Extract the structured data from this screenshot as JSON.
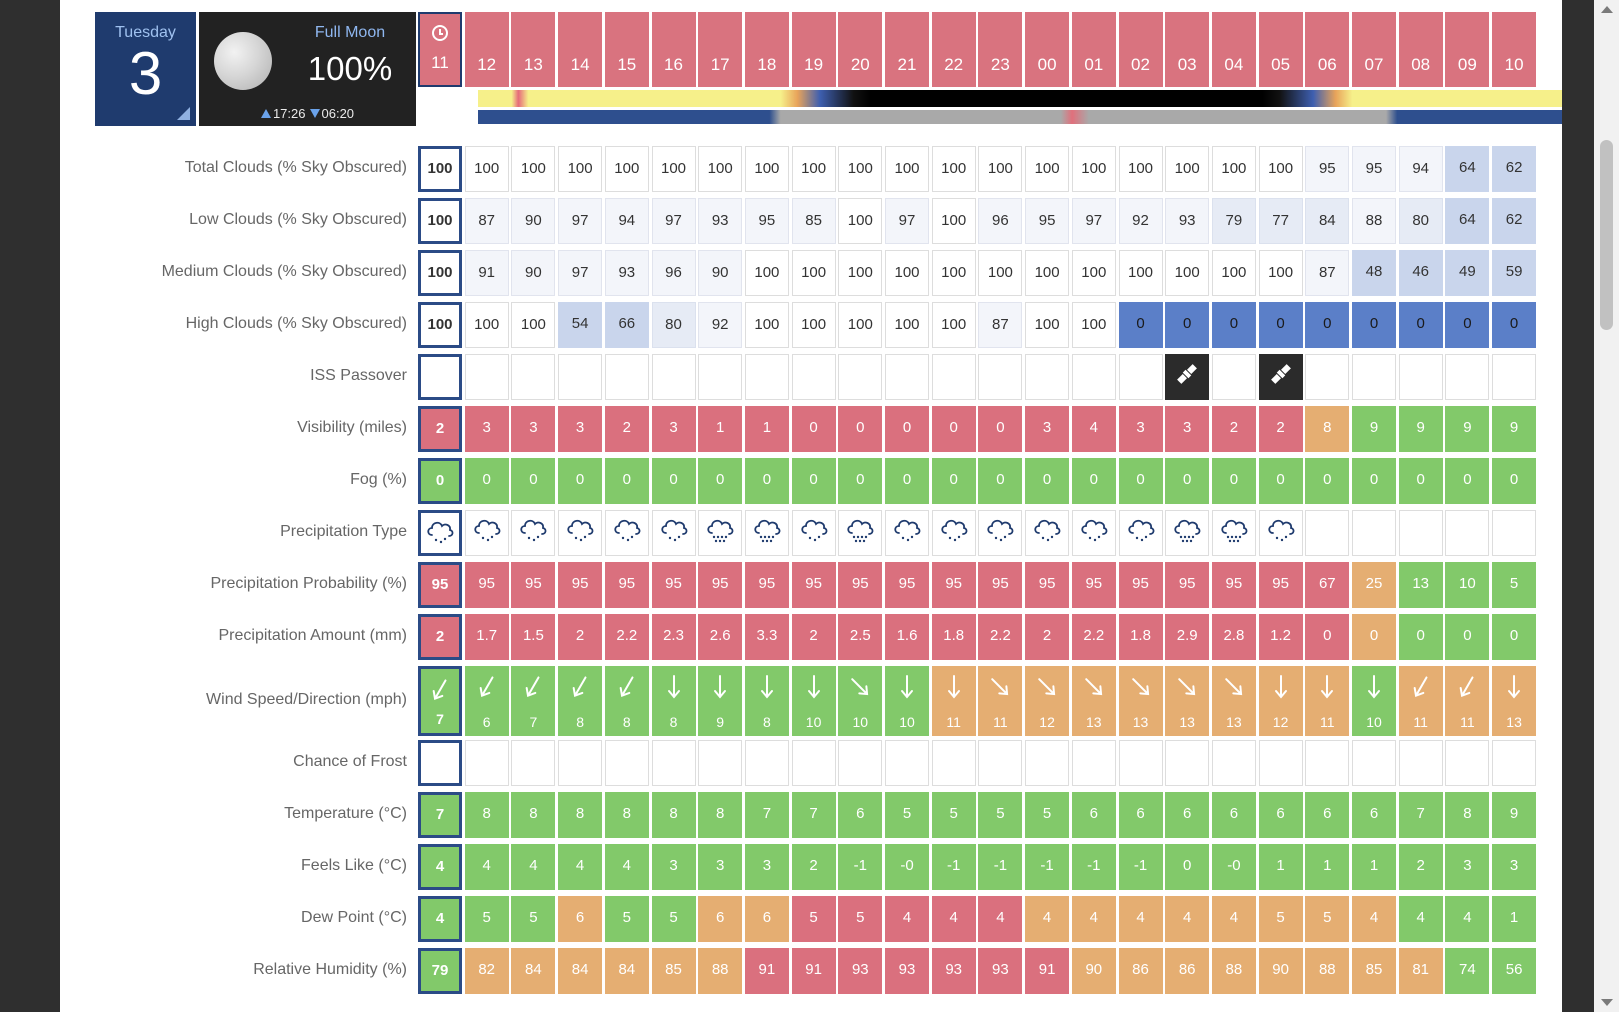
{
  "day": {
    "name": "Tuesday",
    "number": "3"
  },
  "moon": {
    "phase": "Full Moon",
    "percent": "100%",
    "rise": "17:26",
    "set": "06:20"
  },
  "hours": [
    "11",
    "12",
    "13",
    "14",
    "15",
    "16",
    "17",
    "18",
    "19",
    "20",
    "21",
    "22",
    "23",
    "00",
    "01",
    "02",
    "03",
    "04",
    "05",
    "06",
    "07",
    "08",
    "09",
    "10"
  ],
  "rows": [
    {
      "label": "Total Clouds (% Sky Obscured)",
      "kind": "cloud",
      "values": [
        "100",
        "100",
        "100",
        "100",
        "100",
        "100",
        "100",
        "100",
        "100",
        "100",
        "100",
        "100",
        "100",
        "100",
        "100",
        "100",
        "100",
        "100",
        "100",
        "95",
        "95",
        "94",
        "64",
        "62"
      ]
    },
    {
      "label": "Low Clouds (% Sky Obscured)",
      "kind": "cloud",
      "values": [
        "100",
        "87",
        "90",
        "97",
        "94",
        "97",
        "93",
        "95",
        "85",
        "100",
        "97",
        "100",
        "96",
        "95",
        "97",
        "92",
        "93",
        "79",
        "77",
        "84",
        "88",
        "80",
        "64",
        "62"
      ]
    },
    {
      "label": "Medium Clouds (% Sky Obscured)",
      "kind": "cloud",
      "values": [
        "100",
        "91",
        "90",
        "97",
        "93",
        "96",
        "90",
        "100",
        "100",
        "100",
        "100",
        "100",
        "100",
        "100",
        "100",
        "100",
        "100",
        "100",
        "100",
        "87",
        "48",
        "46",
        "49",
        "59"
      ]
    },
    {
      "label": "High Clouds (% Sky Obscured)",
      "kind": "cloud",
      "values": [
        "100",
        "100",
        "100",
        "54",
        "66",
        "80",
        "92",
        "100",
        "100",
        "100",
        "100",
        "100",
        "87",
        "100",
        "100",
        "0",
        "0",
        "0",
        "0",
        "0",
        "0",
        "0",
        "0",
        "0"
      ]
    },
    {
      "label": "ISS Passover",
      "kind": "iss",
      "values": [
        "",
        "",
        "",
        "",
        "",
        "",
        "",
        "",
        "",
        "",
        "",
        "",
        "",
        "",
        "",
        "",
        "sat",
        "",
        "sat",
        "",
        "",
        "",
        "",
        ""
      ]
    },
    {
      "label": "Visibility (miles)",
      "kind": "vis",
      "values": [
        "2",
        "3",
        "3",
        "3",
        "2",
        "3",
        "1",
        "1",
        "0",
        "0",
        "0",
        "0",
        "0",
        "3",
        "4",
        "3",
        "3",
        "2",
        "2",
        "8",
        "9",
        "9",
        "9",
        "9"
      ]
    },
    {
      "label": "Fog (%)",
      "kind": "fog",
      "values": [
        "0",
        "0",
        "0",
        "0",
        "0",
        "0",
        "0",
        "0",
        "0",
        "0",
        "0",
        "0",
        "0",
        "0",
        "0",
        "0",
        "0",
        "0",
        "0",
        "0",
        "0",
        "0",
        "0",
        "0"
      ]
    },
    {
      "label": "Precipitation Type",
      "kind": "ptype",
      "values": [
        "light",
        "light",
        "light",
        "light",
        "light",
        "light",
        "heavy",
        "heavy",
        "light",
        "heavy",
        "light",
        "light",
        "light",
        "light",
        "light",
        "light",
        "heavy",
        "heavy",
        "light",
        "",
        "",
        "",
        "",
        ""
      ]
    },
    {
      "label": "Precipitation Probability (%)",
      "kind": "pprob",
      "values": [
        "95",
        "95",
        "95",
        "95",
        "95",
        "95",
        "95",
        "95",
        "95",
        "95",
        "95",
        "95",
        "95",
        "95",
        "95",
        "95",
        "95",
        "95",
        "95",
        "67",
        "25",
        "13",
        "10",
        "5"
      ]
    },
    {
      "label": "Precipitation Amount (mm)",
      "kind": "pamt",
      "values": [
        "2",
        "1.7",
        "1.5",
        "2",
        "2.2",
        "2.3",
        "2.6",
        "3.3",
        "2",
        "2.5",
        "1.6",
        "1.8",
        "2.2",
        "2",
        "2.2",
        "1.8",
        "2.9",
        "2.8",
        "1.2",
        "0",
        "0",
        "0",
        "0",
        "0"
      ]
    },
    {
      "label": "Wind Speed/Direction (mph)",
      "kind": "wind",
      "values": [
        "7",
        "6",
        "7",
        "8",
        "8",
        "8",
        "9",
        "8",
        "10",
        "10",
        "10",
        "11",
        "11",
        "12",
        "13",
        "13",
        "13",
        "13",
        "12",
        "11",
        "10",
        "11",
        "11",
        "13"
      ],
      "dirs": [
        210,
        210,
        210,
        210,
        210,
        180,
        180,
        180,
        180,
        135,
        180,
        180,
        135,
        135,
        135,
        135,
        135,
        135,
        180,
        180,
        180,
        210,
        210,
        180
      ]
    },
    {
      "label": "Chance of Frost",
      "kind": "frost",
      "values": [
        "",
        "",
        "",
        "",
        "",
        "",
        "",
        "",
        "",
        "",
        "",
        "",
        "",
        "",
        "",
        "",
        "",
        "",
        "",
        "",
        "",
        "",
        "",
        ""
      ]
    },
    {
      "label": "Temperature (°C)",
      "kind": "temp",
      "values": [
        "7",
        "8",
        "8",
        "8",
        "8",
        "8",
        "8",
        "7",
        "7",
        "6",
        "5",
        "5",
        "5",
        "5",
        "6",
        "6",
        "6",
        "6",
        "6",
        "6",
        "6",
        "7",
        "8",
        "9"
      ]
    },
    {
      "label": "Feels Like (°C)",
      "kind": "feels",
      "values": [
        "4",
        "4",
        "4",
        "4",
        "4",
        "3",
        "3",
        "3",
        "2",
        "-1",
        "-0",
        "-1",
        "-1",
        "-1",
        "-1",
        "-1",
        "0",
        "-0",
        "1",
        "1",
        "1",
        "2",
        "3",
        "3"
      ]
    },
    {
      "label": "Dew Point (°C)",
      "kind": "dew",
      "values": [
        "4",
        "5",
        "5",
        "6",
        "5",
        "5",
        "6",
        "6",
        "5",
        "5",
        "4",
        "4",
        "4",
        "4",
        "4",
        "4",
        "4",
        "4",
        "5",
        "5",
        "4",
        "4",
        "4",
        "1"
      ]
    },
    {
      "label": "Relative Humidity (%)",
      "kind": "rh",
      "values": [
        "79",
        "82",
        "84",
        "84",
        "84",
        "85",
        "88",
        "91",
        "91",
        "93",
        "93",
        "93",
        "93",
        "91",
        "90",
        "86",
        "86",
        "88",
        "90",
        "88",
        "85",
        "81",
        "74",
        "56"
      ]
    }
  ],
  "colors": {
    "red": "#da707e",
    "green": "#82c96a",
    "orange": "#e5ae72",
    "navy": "#1f3b6e"
  }
}
